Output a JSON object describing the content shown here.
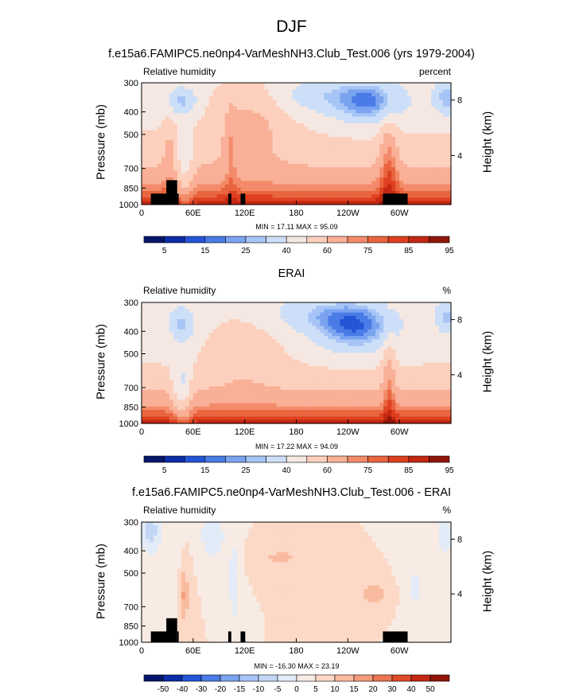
{
  "title": "DJF",
  "colors": {
    "rh_levels": [
      "#06176b",
      "#0c2ca8",
      "#2455d6",
      "#4a7be6",
      "#7aa3f0",
      "#a6c4f6",
      "#cddff8",
      "#f5e8e2",
      "#fcd0bd",
      "#f9b096",
      "#f38b6a",
      "#e9653f",
      "#de4020",
      "#c32813",
      "#8f1608"
    ],
    "diff_levels": [
      "#06176b",
      "#0c2ca8",
      "#2455d6",
      "#4a7be6",
      "#7aa3f0",
      "#a6c4f6",
      "#c4d6f5",
      "#e2ebf8",
      "#f7ebe4",
      "#fcd8c6",
      "#f9bb9f",
      "#f39c7a",
      "#ea7553",
      "#de4a26",
      "#c32813",
      "#8f1608"
    ],
    "topography": "#000000"
  },
  "panels": [
    {
      "title": "f.e15a6.FAMIPC5.ne0np4-VarMeshNH3.Club_Test.006 (yrs 1979-2004)",
      "left_label": "Relative humidity",
      "right_label": "percent",
      "y_axis_title": "Pressure (mb)",
      "y2_axis_title": "Height (km)",
      "y_ticks": [
        "300",
        "400",
        "500",
        "700",
        "850",
        "1000"
      ],
      "y2_ticks": [
        "8",
        "4"
      ],
      "x_ticks": [
        "0",
        "60E",
        "120E",
        "180",
        "120W",
        "60W"
      ],
      "minmax": "MIN = 17.11  MAX = 95.09",
      "colorbar_labels": [
        "5",
        "15",
        "25",
        "40",
        "60",
        "75",
        "85",
        "95"
      ]
    },
    {
      "title": "ERAI",
      "left_label": "Relative humidity",
      "right_label": "%",
      "y_axis_title": "Pressure (mb)",
      "y2_axis_title": "Height (km)",
      "y_ticks": [
        "300",
        "400",
        "500",
        "700",
        "850",
        "1000"
      ],
      "y2_ticks": [
        "8",
        "4"
      ],
      "x_ticks": [
        "0",
        "60E",
        "120E",
        "180",
        "120W",
        "60W"
      ],
      "minmax": "MIN = 17.22  MAX = 94.09",
      "colorbar_labels": [
        "5",
        "15",
        "25",
        "40",
        "60",
        "75",
        "85",
        "95"
      ]
    },
    {
      "title": "f.e15a6.FAMIPC5.ne0np4-VarMeshNH3.Club_Test.006 - ERAI",
      "left_label": "Relative humidity",
      "right_label": "%",
      "y_axis_title": "Pressure (mb)",
      "y2_axis_title": "Height (km)",
      "y_ticks": [
        "300",
        "400",
        "500",
        "700",
        "850",
        "1000"
      ],
      "y2_ticks": [
        "8",
        "4"
      ],
      "x_ticks": [
        "0",
        "60E",
        "120E",
        "180",
        "120W",
        "60W"
      ],
      "minmax": "MIN = -16.30  MAX = 23.19",
      "colorbar_labels": [
        "-50",
        "-40",
        "-30",
        "-20",
        "-15",
        "-10",
        "-5",
        "0",
        "5",
        "10",
        "15",
        "20",
        "30",
        "40",
        "50"
      ]
    }
  ],
  "chart_data": [
    {
      "type": "heatmap",
      "title": "f.e15a6.FAMIPC5.ne0np4-VarMeshNH3.Club_Test.006 (yrs 1979-2004)",
      "variable": "Relative humidity",
      "units": "percent",
      "season": "DJF",
      "xlabel": "",
      "ylabel": "Pressure (mb)",
      "y2label": "Height (km)",
      "x_ticks": [
        "0",
        "60E",
        "120E",
        "180",
        "120W",
        "60W"
      ],
      "y_ticks": [
        300,
        400,
        500,
        700,
        850,
        1000
      ],
      "ylim": [
        1000,
        300
      ],
      "min": 17.11,
      "max": 95.09,
      "levels": [
        5,
        10,
        15,
        20,
        25,
        30,
        40,
        50,
        60,
        70,
        75,
        80,
        85,
        90,
        95
      ]
    },
    {
      "type": "heatmap",
      "title": "ERAI",
      "variable": "Relative humidity",
      "units": "%",
      "season": "DJF",
      "xlabel": "",
      "ylabel": "Pressure (mb)",
      "y2label": "Height (km)",
      "x_ticks": [
        "0",
        "60E",
        "120E",
        "180",
        "120W",
        "60W"
      ],
      "y_ticks": [
        300,
        400,
        500,
        700,
        850,
        1000
      ],
      "ylim": [
        1000,
        300
      ],
      "min": 17.22,
      "max": 94.09,
      "levels": [
        5,
        10,
        15,
        20,
        25,
        30,
        40,
        50,
        60,
        70,
        75,
        80,
        85,
        90,
        95
      ]
    },
    {
      "type": "heatmap",
      "title": "f.e15a6.FAMIPC5.ne0np4-VarMeshNH3.Club_Test.006 - ERAI",
      "variable": "Relative humidity",
      "units": "%",
      "season": "DJF",
      "xlabel": "",
      "ylabel": "Pressure (mb)",
      "y2label": "Height (km)",
      "x_ticks": [
        "0",
        "60E",
        "120E",
        "180",
        "120W",
        "60W"
      ],
      "y_ticks": [
        300,
        400,
        500,
        700,
        850,
        1000
      ],
      "ylim": [
        1000,
        300
      ],
      "min": -16.3,
      "max": 23.19,
      "levels": [
        -50,
        -40,
        -30,
        -20,
        -15,
        -10,
        -5,
        0,
        5,
        10,
        15,
        20,
        30,
        40,
        50
      ]
    }
  ]
}
